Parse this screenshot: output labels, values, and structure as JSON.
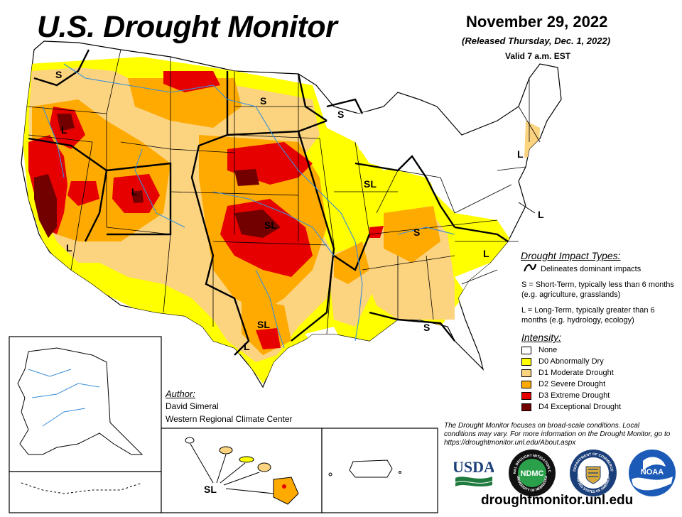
{
  "header": {
    "title": "U.S. Drought Monitor",
    "date": "November 29, 2022",
    "released": "(Released Thursday, Dec. 1, 2022)",
    "valid": "Valid 7 a.m. EST"
  },
  "impact_types": {
    "title": "Drought Impact Types:",
    "delineates": "Delineates dominant impacts",
    "short_term": "S = Short-Term, typically less than 6 months (e.g. agriculture, grasslands)",
    "long_term": "L = Long-Term, typically greater than 6 months (e.g. hydrology, ecology)"
  },
  "intensity": {
    "title": "Intensity:",
    "items": [
      {
        "label": "None",
        "color": "#ffffff"
      },
      {
        "label": "D0 Abnormally Dry",
        "color": "#ffff00"
      },
      {
        "label": "D1 Moderate Drought",
        "color": "#fcd37f"
      },
      {
        "label": "D2 Severe Drought",
        "color": "#ffaa00"
      },
      {
        "label": "D3 Extreme Drought",
        "color": "#e60000"
      },
      {
        "label": "D4 Exceptional Drought",
        "color": "#730000"
      }
    ]
  },
  "author": {
    "title": "Author:",
    "name": "David Simeral",
    "org": "Western Regional Climate Center"
  },
  "note": "The Drought Monitor focuses on broad-scale conditions. Local conditions may vary. For more information on the Drought Monitor, go to https://droughtmonitor.unl.edu/About.aspx",
  "website": "droughtmonitor.unl.edu",
  "logos": {
    "usda": "USDA",
    "ndmc": "NDMC",
    "noaa": "NOAA",
    "ndmc_ring_top": "NATIONAL DROUGHT MITIGATION CENTER",
    "ndmc_ring_bottom": "UNIVERSITY OF NEBRASKA",
    "commerce_ring_top": "DEPARTMENT OF COMMERCE",
    "commerce_ring_bottom": "UNITED STATES OF AMERICA"
  },
  "map_labels": {
    "s": "S",
    "l": "L",
    "sl": "SL"
  }
}
